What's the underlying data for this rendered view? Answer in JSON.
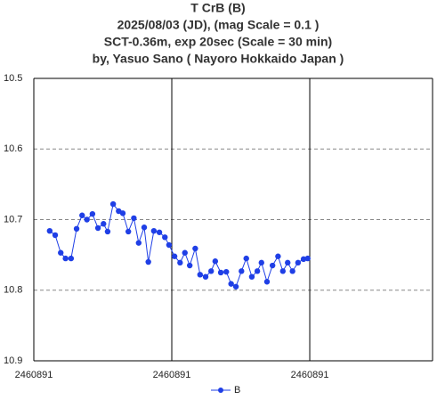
{
  "chart_data": {
    "type": "line",
    "title": [
      "T CrB  (B)",
      "2025/08/03 (JD),   (mag Scale = 0.1 )",
      "SCT-0.36m, exp 20sec (Scale = 30 min)",
      "by, Yasuo Sano ( Nayoro Hokkaido Japan )"
    ],
    "x": [
      2460890.9823,
      2460890.9831,
      2460890.9839,
      2460890.9846,
      2460890.9854,
      2460890.9862,
      2460890.987,
      2460890.9877,
      2460890.9885,
      2460890.9893,
      2460890.9901,
      2460890.9907,
      2460890.9915,
      2460890.9923,
      2460890.9929,
      2460890.9937,
      2460890.9945,
      2460890.9952,
      2460890.996,
      2460890.9966,
      2460890.9974,
      2460890.9982,
      2460890.999,
      2460890.9996,
      2460891.0004,
      2460891.0012,
      2460891.0019,
      2460891.0026,
      2460891.0034,
      2460891.0041,
      2460891.0049,
      2460891.0057,
      2460891.0063,
      2460891.0071,
      2460891.0079,
      2460891.0086,
      2460891.0093,
      2460891.0101,
      2460891.0108,
      2460891.0116,
      2460891.0124,
      2460891.013,
      2460891.0138,
      2460891.0146,
      2460891.0154,
      2460891.0161,
      2460891.0168,
      2460891.0175,
      2460891.0183,
      2460891.0191,
      2460891.0197
    ],
    "series": [
      {
        "name": "B",
        "color": "#1f3fe6",
        "values": [
          10.716,
          10.722,
          10.747,
          10.755,
          10.755,
          10.713,
          10.694,
          10.7,
          10.692,
          10.712,
          10.706,
          10.717,
          10.678,
          10.688,
          10.691,
          10.717,
          10.698,
          10.733,
          10.711,
          10.76,
          10.716,
          10.718,
          10.725,
          10.736,
          10.752,
          10.761,
          10.747,
          10.765,
          10.741,
          10.778,
          10.781,
          10.773,
          10.759,
          10.775,
          10.774,
          10.791,
          10.795,
          10.773,
          10.755,
          10.781,
          10.773,
          10.761,
          10.788,
          10.765,
          10.752,
          10.773,
          10.761,
          10.773,
          10.761,
          10.756,
          10.755
        ]
      }
    ],
    "xlim": [
      2460890.98,
      2460891.0378
    ],
    "xticks": [
      {
        "value": 2460890.98,
        "label": "2460891"
      },
      {
        "value": 2460891.0,
        "label": "2460891"
      },
      {
        "value": 2460891.02,
        "label": "2460891"
      }
    ],
    "ylim": [
      10.5,
      10.9
    ],
    "yticks": [
      10.5,
      10.6,
      10.7,
      10.8,
      10.9
    ],
    "invert_y": true,
    "grid": true,
    "legend": "bottom"
  }
}
